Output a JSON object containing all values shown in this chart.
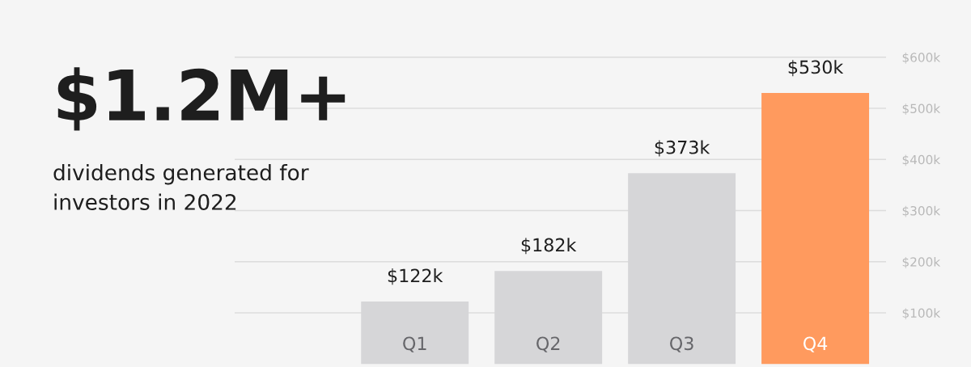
{
  "chart_data": {
    "type": "bar",
    "title": "$1.2M+",
    "subtitle": "dividends generated for\ninvestors in 2022",
    "categories": [
      "Q1",
      "Q2",
      "Q3",
      "Q4"
    ],
    "values": [
      122,
      182,
      373,
      530
    ],
    "colors": [
      "#d6d6d8",
      "#d6d6d8",
      "#d6d6d8",
      "#ff9a5e"
    ],
    "value_labels": [
      "$122k",
      "$182k",
      "$373k",
      "$530k"
    ],
    "ylim": [
      -6,
      712
    ],
    "yticks": [
      {
        "value": 100,
        "label": "$100k"
      },
      {
        "value": 200,
        "label": "$200k"
      },
      {
        "value": 300,
        "label": "$300k"
      },
      {
        "value": 400,
        "label": "$400k"
      },
      {
        "value": 500,
        "label": "$500k"
      },
      {
        "value": 600,
        "label": "$600k"
      }
    ],
    "grid": "y"
  }
}
